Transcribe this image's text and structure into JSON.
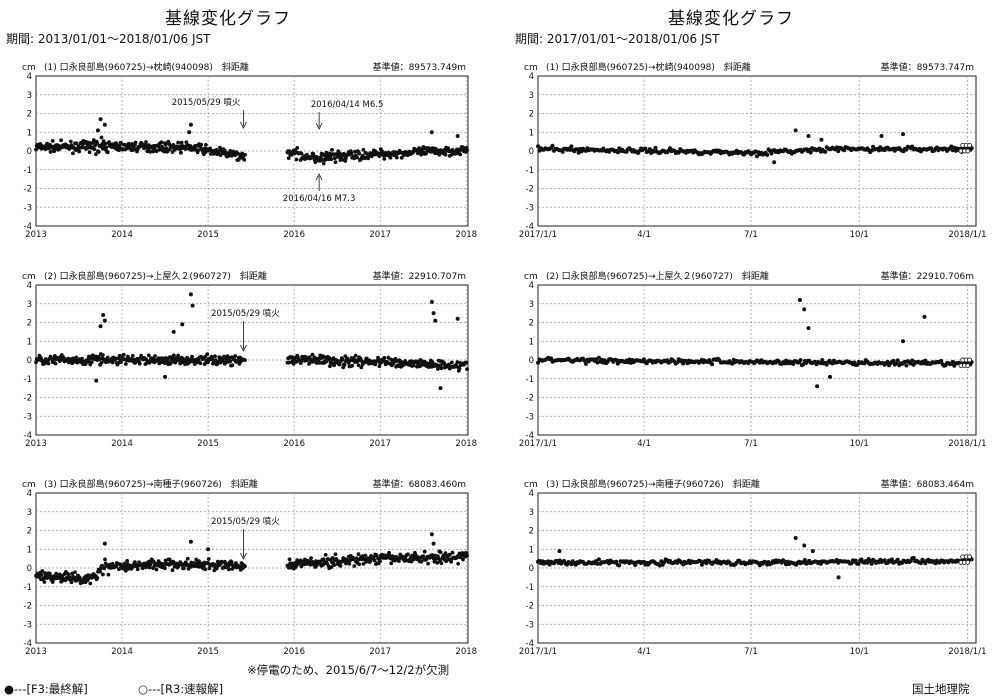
{
  "columns": [
    {
      "title": "基線変化グラフ",
      "period": "期間: 2013/01/01～2018/01/06 JST"
    },
    {
      "title": "基線変化グラフ",
      "period": "期間: 2017/01/01～2018/01/06 JST"
    }
  ],
  "note": "※停電のため、2015/6/7～12/2が欠測",
  "legend": {
    "final": "●---[F3:最終解]",
    "rapid": "○---[R3:速報解]"
  },
  "credit": "国土地理院",
  "colors": {
    "point": "#111111",
    "grid": "#999999"
  },
  "chart_data": [
    {
      "type": "scatter",
      "header": "(1) 口永良部島(960725)→枕崎(940098)　斜距離",
      "base": "基準値：89573.749m",
      "yunit": "cm",
      "ylim": [
        -4,
        4
      ],
      "xticks": [
        "2013",
        "2014",
        "2015",
        "2016",
        "2017",
        "2018"
      ],
      "annotations": [
        "2015/05/29 噴火",
        "2016/04/14 M6.5",
        "2016/04/16 M7.3"
      ],
      "gap": [
        "2015-06-07",
        "2015-12-02"
      ],
      "trend": [
        [
          2013.0,
          0.2
        ],
        [
          2013.7,
          0.25
        ],
        [
          2014.8,
          0.2
        ],
        [
          2015.4,
          -0.3
        ],
        [
          2015.95,
          -0.1
        ],
        [
          2016.3,
          -0.4
        ],
        [
          2016.8,
          -0.2
        ],
        [
          2017.5,
          -0.05
        ],
        [
          2018.0,
          0.05
        ]
      ],
      "outliers": [
        [
          2013.75,
          1.7
        ],
        [
          2013.8,
          1.4
        ],
        [
          2013.72,
          1.1
        ],
        [
          2014.8,
          1.4
        ],
        [
          2014.78,
          1.0
        ],
        [
          2017.6,
          1.0
        ],
        [
          2017.9,
          0.8
        ]
      ]
    },
    {
      "type": "scatter",
      "header": "(1) 口永良部島(960725)→枕崎(940098)　斜距離",
      "base": "基準値：89573.747m",
      "yunit": "cm",
      "ylim": [
        -4,
        4
      ],
      "xticks": [
        "2017/1/1",
        "4/1",
        "7/1",
        "10/1",
        "2018/1/1"
      ],
      "trend": [
        [
          2017.0,
          0.1
        ],
        [
          2017.3,
          0.0
        ],
        [
          2017.5,
          -0.1
        ],
        [
          2017.7,
          0.1
        ],
        [
          2018.0,
          0.1
        ]
      ],
      "outliers": [
        [
          2017.6,
          1.1
        ],
        [
          2017.63,
          0.8
        ],
        [
          2017.66,
          0.6
        ],
        [
          2017.8,
          0.8
        ],
        [
          2017.85,
          0.9
        ],
        [
          2017.55,
          -0.6
        ]
      ]
    },
    {
      "type": "scatter",
      "header": "(2) 口永良部島(960725)→上屋久２(960727)　斜距離",
      "base": "基準値：22910.707m",
      "yunit": "cm",
      "ylim": [
        -4,
        4
      ],
      "xticks": [
        "2013",
        "2014",
        "2015",
        "2016",
        "2017",
        "2018"
      ],
      "annotations": [
        "2015/05/29 噴火"
      ],
      "gap": [
        "2015-06-07",
        "2015-12-02"
      ],
      "trend": [
        [
          2013.0,
          0.0
        ],
        [
          2014.0,
          0.0
        ],
        [
          2015.4,
          0.0
        ],
        [
          2015.95,
          0.0
        ],
        [
          2017.0,
          -0.1
        ],
        [
          2018.0,
          -0.3
        ]
      ],
      "outliers": [
        [
          2013.78,
          2.4
        ],
        [
          2013.8,
          2.1
        ],
        [
          2013.75,
          1.8
        ],
        [
          2014.8,
          3.5
        ],
        [
          2014.82,
          2.9
        ],
        [
          2014.7,
          1.9
        ],
        [
          2014.6,
          1.5
        ],
        [
          2017.6,
          3.1
        ],
        [
          2017.62,
          2.5
        ],
        [
          2017.64,
          2.1
        ],
        [
          2017.9,
          2.2
        ],
        [
          2013.7,
          -1.1
        ],
        [
          2014.5,
          -0.9
        ],
        [
          2017.7,
          -1.5
        ]
      ]
    },
    {
      "type": "scatter",
      "header": "(2) 口永良部島(960725)→上屋久２(960727)　斜距離",
      "base": "基準値：22910.706m",
      "yunit": "cm",
      "ylim": [
        -4,
        4
      ],
      "xticks": [
        "2017/1/1",
        "4/1",
        "7/1",
        "10/1",
        "2018/1/1"
      ],
      "trend": [
        [
          2017.0,
          0.0
        ],
        [
          2017.5,
          -0.1
        ],
        [
          2018.0,
          -0.2
        ]
      ],
      "outliers": [
        [
          2017.61,
          3.2
        ],
        [
          2017.62,
          2.7
        ],
        [
          2017.63,
          1.7
        ],
        [
          2017.9,
          2.3
        ],
        [
          2017.85,
          1.0
        ],
        [
          2017.65,
          -1.4
        ],
        [
          2017.68,
          -0.9
        ]
      ]
    },
    {
      "type": "scatter",
      "header": "(3) 口永良部島(960725)→南種子(960726)　斜距離",
      "base": "基準値：68083.460m",
      "yunit": "cm",
      "ylim": [
        -4,
        4
      ],
      "xticks": [
        "2013",
        "2014",
        "2015",
        "2016",
        "2017",
        "2018"
      ],
      "annotations": [
        "2015/05/29 噴火"
      ],
      "gap": [
        "2015-06-07",
        "2015-12-02"
      ],
      "trend": [
        [
          2013.0,
          -0.4
        ],
        [
          2013.6,
          -0.6
        ],
        [
          2013.8,
          0.1
        ],
        [
          2014.5,
          0.2
        ],
        [
          2015.4,
          0.1
        ],
        [
          2015.95,
          0.2
        ],
        [
          2017.0,
          0.5
        ],
        [
          2018.0,
          0.6
        ]
      ],
      "outliers": [
        [
          2013.8,
          1.3
        ],
        [
          2014.8,
          1.4
        ],
        [
          2015.0,
          1.0
        ],
        [
          2017.6,
          1.8
        ],
        [
          2017.62,
          1.3
        ]
      ]
    },
    {
      "type": "scatter",
      "header": "(3) 口永良部島(960725)→南種子(960726)　斜距離",
      "base": "基準値：68083.464m",
      "yunit": "cm",
      "ylim": [
        -4,
        4
      ],
      "xticks": [
        "2017/1/1",
        "4/1",
        "7/1",
        "10/1",
        "2018/1/1"
      ],
      "trend": [
        [
          2017.0,
          0.3
        ],
        [
          2017.5,
          0.3
        ],
        [
          2018.0,
          0.4
        ]
      ],
      "outliers": [
        [
          2017.6,
          1.6
        ],
        [
          2017.62,
          1.2
        ],
        [
          2017.64,
          0.9
        ],
        [
          2017.7,
          -0.5
        ],
        [
          2017.05,
          0.9
        ]
      ]
    }
  ]
}
